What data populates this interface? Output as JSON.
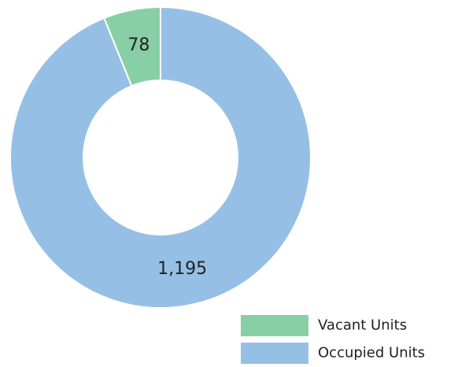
{
  "chart_data": {
    "type": "donut",
    "categories": [
      "Vacant Units",
      "Occupied Units"
    ],
    "values": [
      78,
      1195
    ],
    "value_labels": [
      "78",
      "1,195"
    ],
    "colors": [
      "#88cfa6",
      "#96bfe6"
    ],
    "legend": "bottom-right"
  }
}
